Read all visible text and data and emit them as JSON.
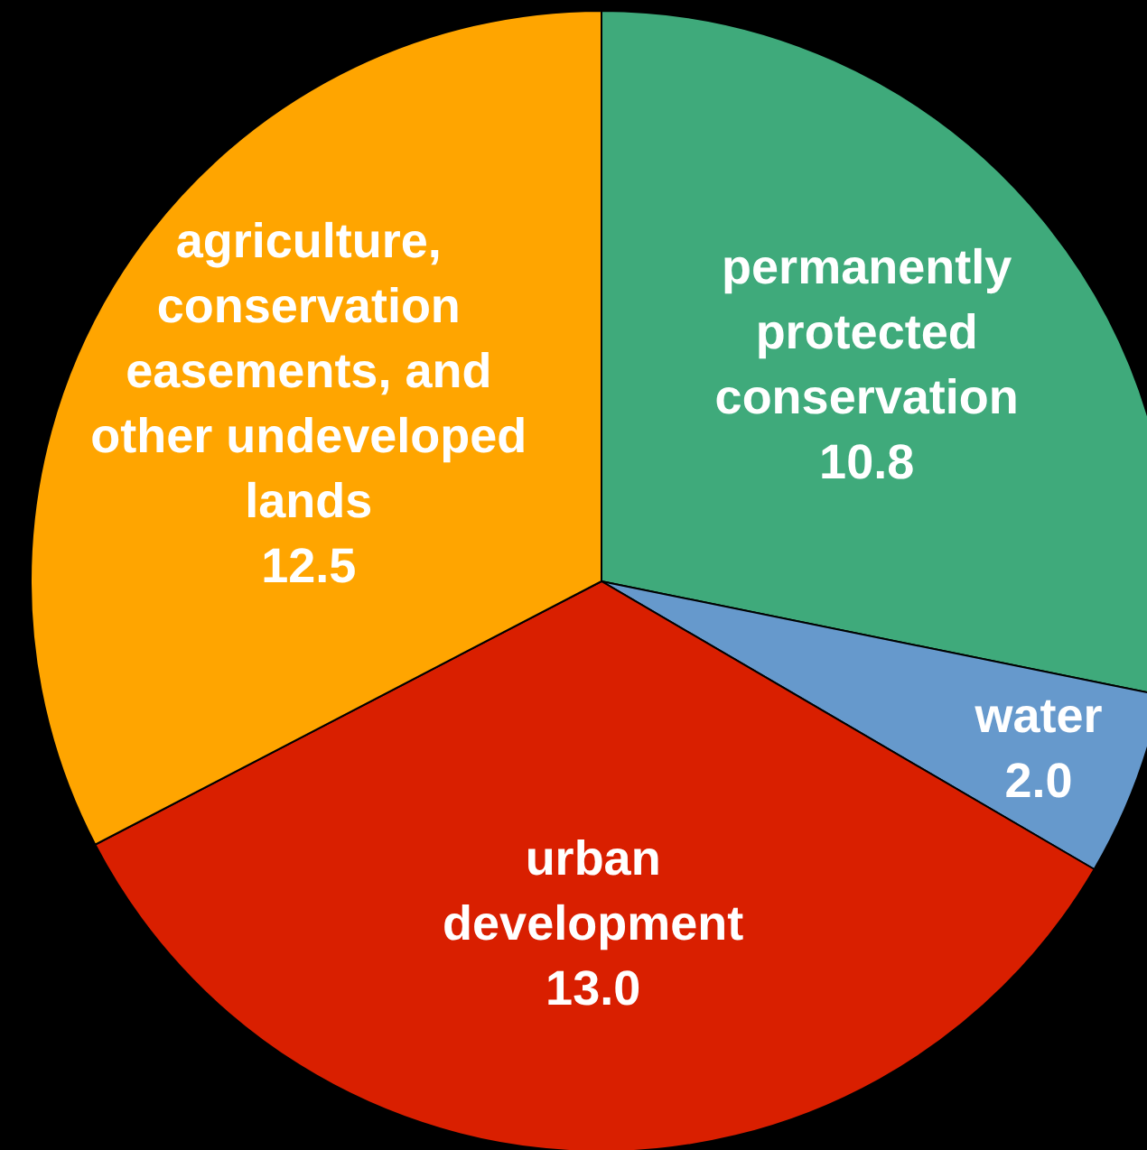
{
  "chart_data": {
    "type": "pie",
    "categories": [
      "permanently protected conservation",
      "water",
      "urban development",
      "agriculture, conservation easements, and other undeveloped lands"
    ],
    "values": [
      10.8,
      2.0,
      13.0,
      12.5
    ],
    "colors": [
      "#3faa7b",
      "#6699cc",
      "#d91f00",
      "#ffa500"
    ],
    "value_labels": [
      "10.8",
      "2.0",
      "13.0",
      "12.5"
    ]
  }
}
